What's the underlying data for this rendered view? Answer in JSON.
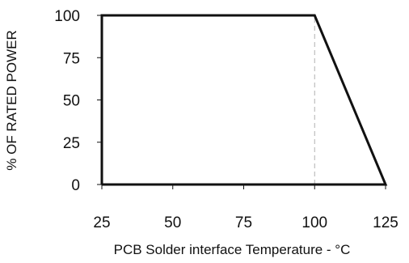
{
  "chart_data": {
    "type": "line",
    "title": "",
    "xlabel": "PCB Solder interface Temperature - °C",
    "ylabel": "% OF RATED POWER",
    "xlim": [
      25,
      125
    ],
    "ylim": [
      0,
      100
    ],
    "x_ticks": [
      "25",
      "50",
      "75",
      "100",
      "125"
    ],
    "y_ticks": [
      "0",
      "25",
      "50",
      "75",
      "100"
    ],
    "x_tick_values": [
      25,
      50,
      75,
      100,
      125
    ],
    "y_tick_values": [
      0,
      25,
      50,
      75,
      100
    ],
    "grid": false,
    "series": [
      {
        "x": [
          25,
          25,
          100,
          125,
          25
        ],
        "y": [
          0,
          100,
          100,
          0,
          0
        ],
        "color": "#111111"
      }
    ],
    "reference_lines": [
      {
        "orientation": "vertical",
        "x": 100,
        "y_range": [
          0,
          100
        ],
        "style": "dashed",
        "color": "#b0b0b0"
      }
    ]
  }
}
